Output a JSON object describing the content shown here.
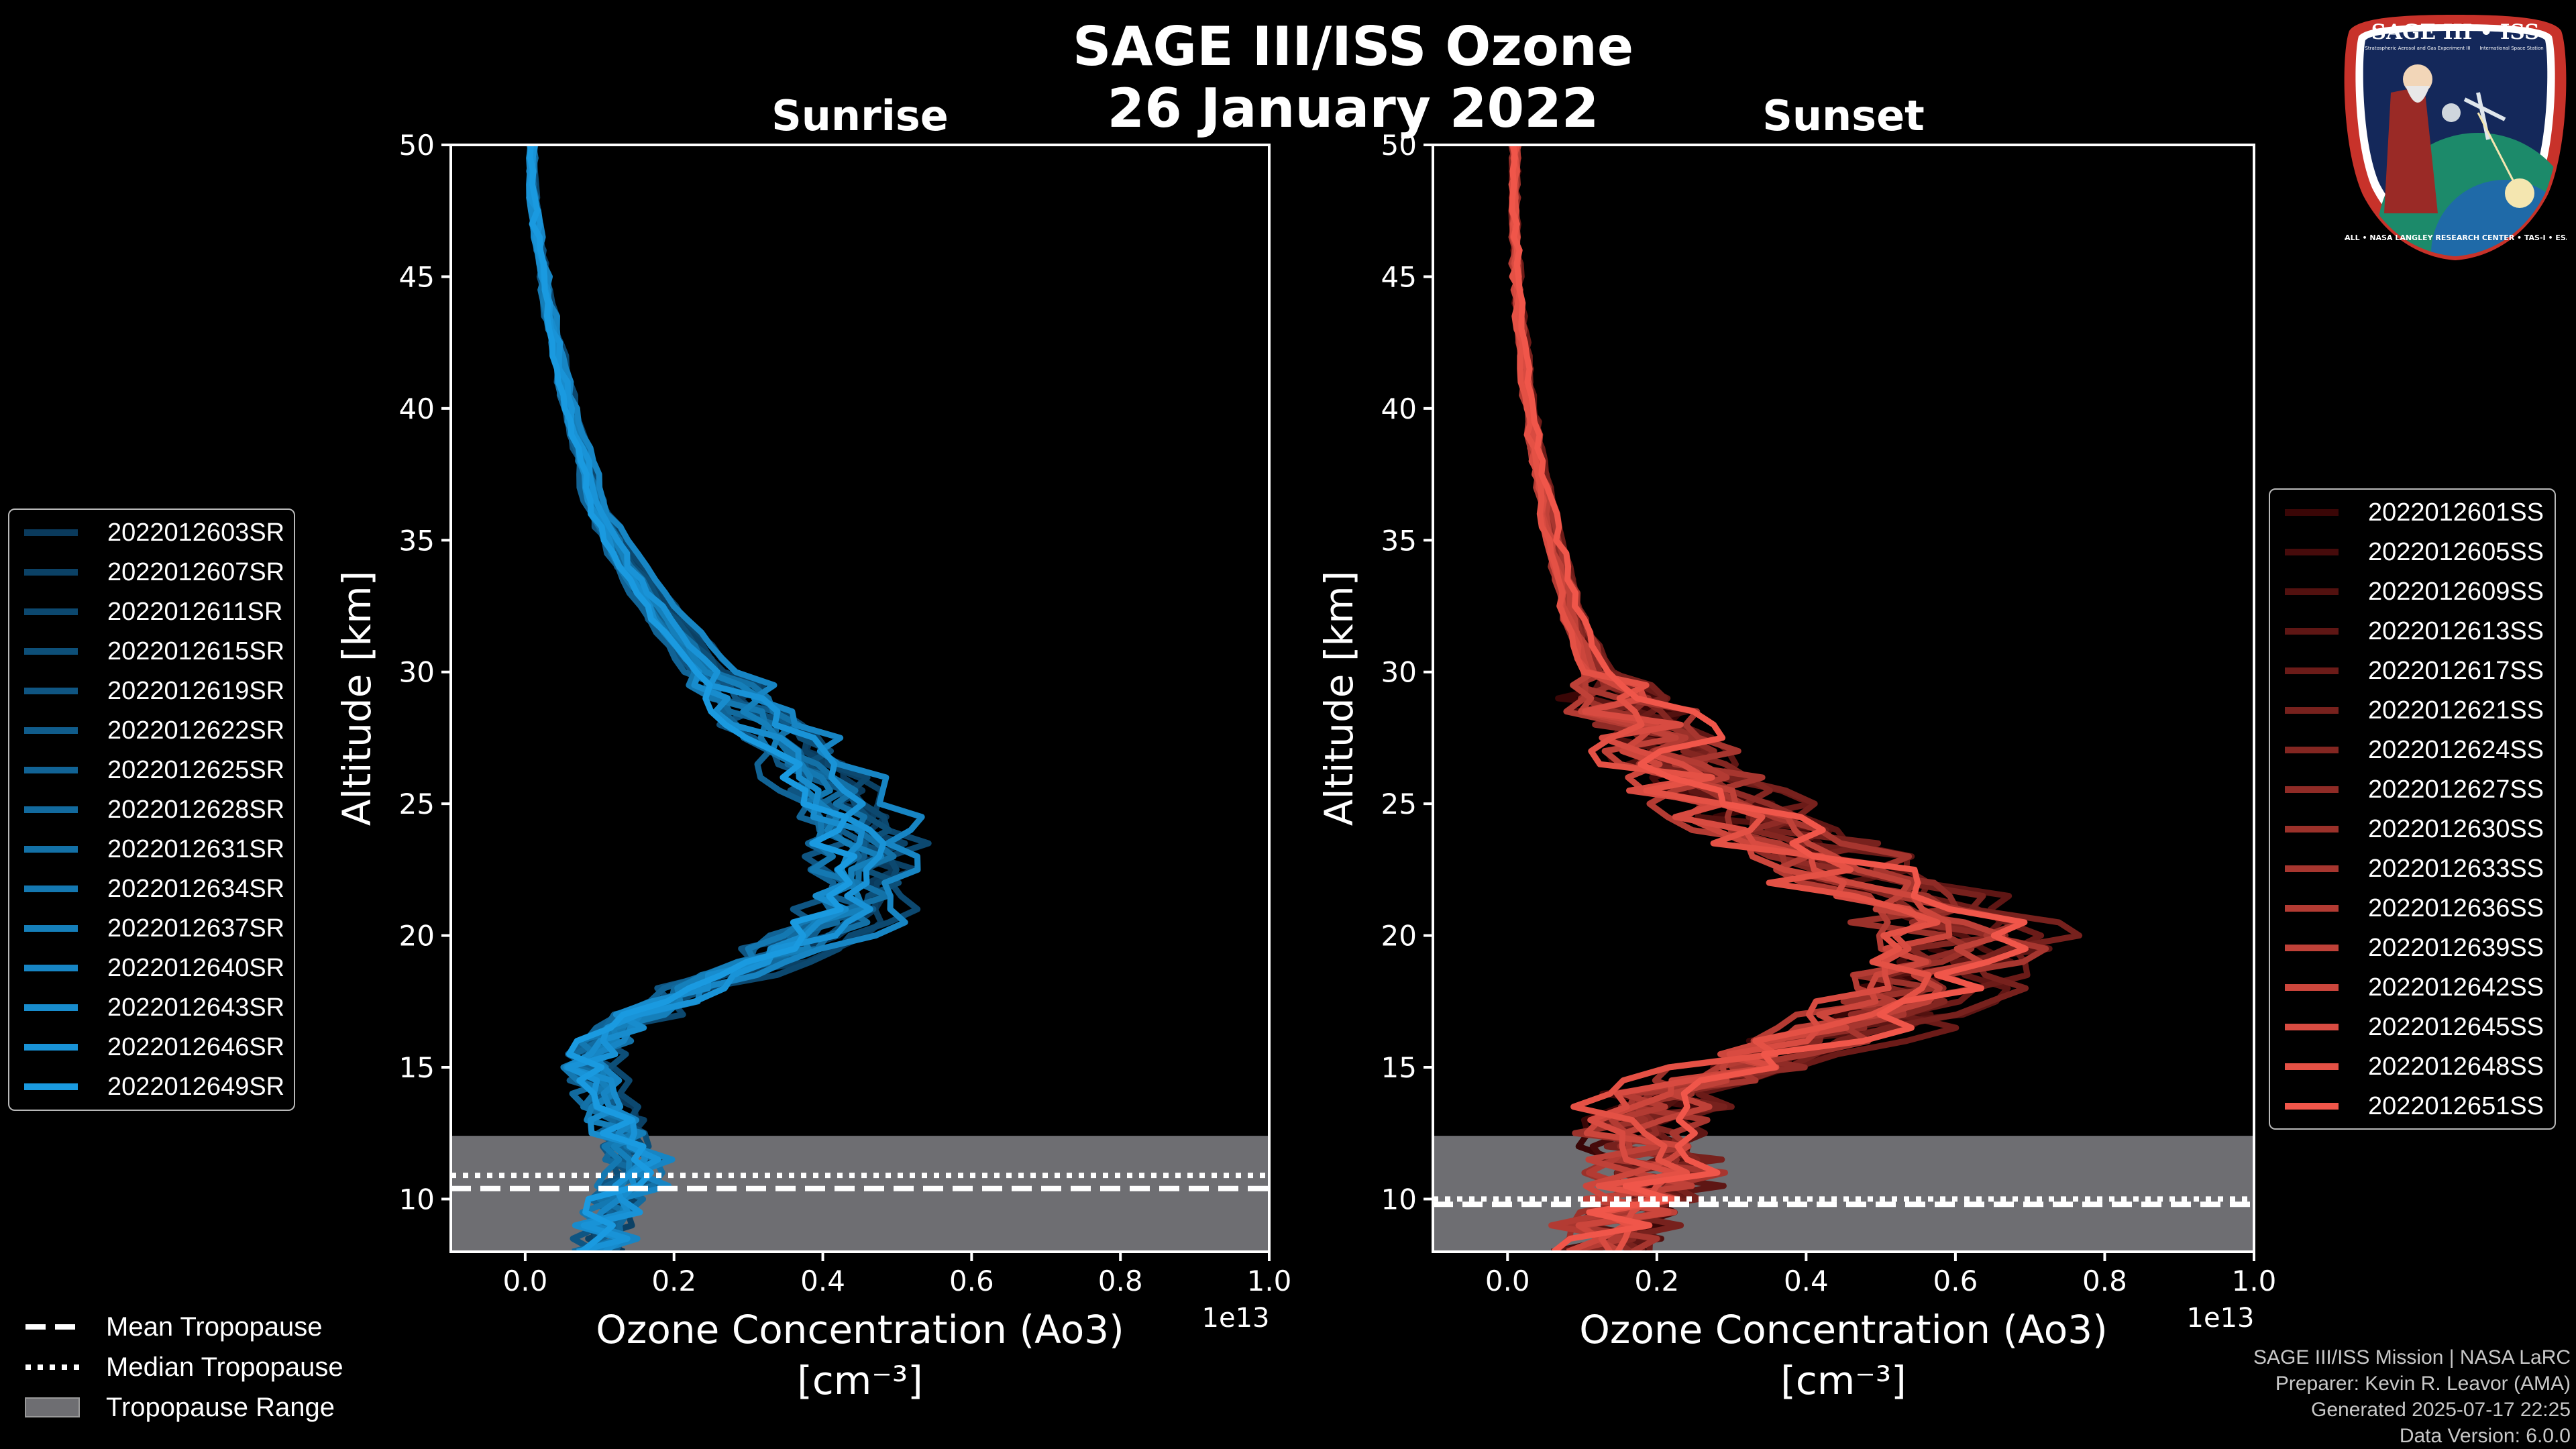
{
  "header": {
    "title_line1": "SAGE III/ISS Ozone",
    "title_line2": "26 January 2022"
  },
  "logo": {
    "top_text": "SAGE III • ISS",
    "sub_left": "Stratospheric Aerosol and Gas Experiment III",
    "sub_right": "International Space Station",
    "ring_text": "BALL • NASA LANGLEY RESEARCH CENTER • TAS-I • ESA"
  },
  "footer": {
    "line1": "SAGE III/ISS Mission | NASA LaRC",
    "line2": "Preparer: Kevin R. Leavor (AMA)",
    "line3": "Generated 2025-07-17 22:25",
    "line4": "Data Version: 6.0.0"
  },
  "tropopause_legend": {
    "mean": "Mean Tropopause",
    "median": "Median Tropopause",
    "range": "Tropopause Range"
  },
  "colors": {
    "sunrise_dark": "#0a3a5c",
    "sunrise_light": "#1a9ae0",
    "sunset_dark": "#3a0606",
    "sunset_light": "#f0564a",
    "trop_range": "#6e6e72"
  },
  "chart_data": [
    {
      "type": "line",
      "title": "Sunrise",
      "xlabel_line1": "Ozone Concentration (Ao3)",
      "xlabel_line2": "[cm⁻³]",
      "ylabel": "Altitude [km]",
      "x_offset_label": "1e13",
      "xlim": [
        -0.1,
        1.0
      ],
      "ylim": [
        8,
        50
      ],
      "x_ticks": [
        "0.0",
        "0.2",
        "0.4",
        "0.6",
        "0.8",
        "1.0"
      ],
      "x_tick_values": [
        0.0,
        0.2,
        0.4,
        0.6,
        0.8,
        1.0
      ],
      "y_ticks": [
        "10",
        "15",
        "20",
        "25",
        "30",
        "35",
        "40",
        "45",
        "50"
      ],
      "y_tick_values": [
        10,
        15,
        20,
        25,
        30,
        35,
        40,
        45,
        50
      ],
      "tropopause": {
        "mean": 10.4,
        "median": 10.9,
        "range": [
          8,
          12.4
        ]
      },
      "series_names": [
        "2022012603SR",
        "2022012607SR",
        "2022012611SR",
        "2022012615SR",
        "2022012619SR",
        "2022012622SR",
        "2022012625SR",
        "2022012628SR",
        "2022012631SR",
        "2022012634SR",
        "2022012637SR",
        "2022012640SR",
        "2022012643SR",
        "2022012646SR",
        "2022012649SR"
      ],
      "base_profile": {
        "altitude": [
          8,
          9,
          10,
          11,
          12,
          13,
          14,
          15,
          16,
          17,
          18,
          19,
          20,
          21,
          22,
          23,
          24,
          25,
          26,
          27,
          28,
          29,
          30,
          32,
          34,
          36,
          38,
          40,
          42,
          44,
          46,
          48,
          50
        ],
        "ozone": [
          0.1,
          0.11,
          0.13,
          0.15,
          0.14,
          0.12,
          0.1,
          0.09,
          0.11,
          0.16,
          0.23,
          0.32,
          0.4,
          0.44,
          0.45,
          0.46,
          0.45,
          0.43,
          0.4,
          0.37,
          0.33,
          0.29,
          0.25,
          0.19,
          0.14,
          0.1,
          0.08,
          0.06,
          0.045,
          0.03,
          0.02,
          0.01,
          0.005
        ]
      }
    },
    {
      "type": "line",
      "title": "Sunset",
      "xlabel_line1": "Ozone Concentration (Ao3)",
      "xlabel_line2": "[cm⁻³]",
      "ylabel": "Altitude [km]",
      "x_offset_label": "1e13",
      "xlim": [
        -0.1,
        1.0
      ],
      "ylim": [
        8,
        50
      ],
      "x_ticks": [
        "0.0",
        "0.2",
        "0.4",
        "0.6",
        "0.8",
        "1.0"
      ],
      "x_tick_values": [
        0.0,
        0.2,
        0.4,
        0.6,
        0.8,
        1.0
      ],
      "y_ticks": [
        "10",
        "15",
        "20",
        "25",
        "30",
        "35",
        "40",
        "45",
        "50"
      ],
      "y_tick_values": [
        10,
        15,
        20,
        25,
        30,
        35,
        40,
        45,
        50
      ],
      "tropopause": {
        "mean": 9.8,
        "median": 10.0,
        "range": [
          8,
          12.4
        ]
      },
      "series_names": [
        "2022012601SS",
        "2022012605SS",
        "2022012609SS",
        "2022012613SS",
        "2022012617SS",
        "2022012621SS",
        "2022012624SS",
        "2022012627SS",
        "2022012630SS",
        "2022012633SS",
        "2022012636SS",
        "2022012639SS",
        "2022012642SS",
        "2022012645SS",
        "2022012648SS",
        "2022012651SS"
      ],
      "base_profile": {
        "altitude": [
          8,
          9,
          10,
          11,
          12,
          13,
          14,
          15,
          16,
          17,
          18,
          19,
          20,
          21,
          22,
          23,
          24,
          25,
          26,
          27,
          28,
          29,
          30,
          32,
          34,
          36,
          38,
          40,
          42,
          44,
          46,
          48,
          50
        ],
        "ozone": [
          0.12,
          0.14,
          0.18,
          0.2,
          0.18,
          0.17,
          0.22,
          0.32,
          0.42,
          0.5,
          0.56,
          0.6,
          0.62,
          0.58,
          0.5,
          0.42,
          0.36,
          0.3,
          0.25,
          0.21,
          0.18,
          0.15,
          0.12,
          0.09,
          0.07,
          0.055,
          0.04,
          0.03,
          0.022,
          0.015,
          0.01,
          0.006,
          0.003
        ]
      }
    }
  ]
}
